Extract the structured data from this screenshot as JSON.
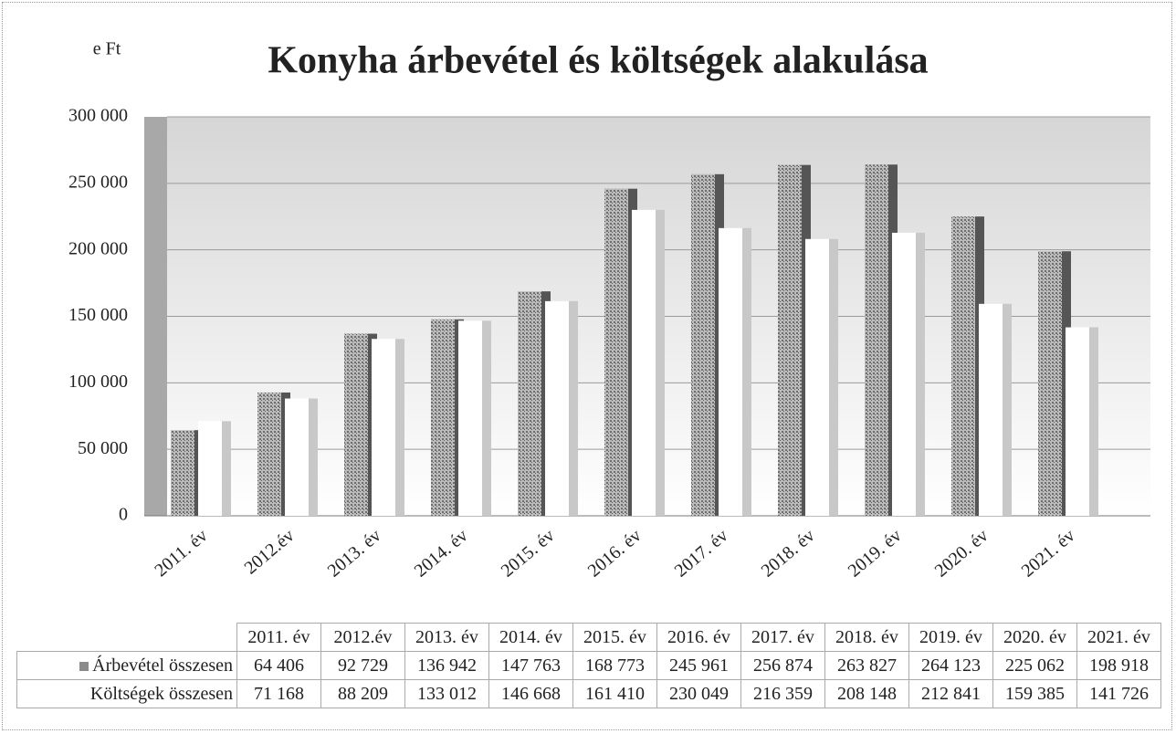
{
  "chart_data": {
    "type": "bar",
    "title": "Konyha árbevétel és költségek alakulása",
    "y_label": "e Ft",
    "categories": [
      "2011. év",
      "2012.év",
      "2013. év",
      "2014. év",
      "2015. év",
      "2016. év",
      "2017. év",
      "2018. év",
      "2019. év",
      "2020. év",
      "2021. év"
    ],
    "series": [
      {
        "name": "Árbevétel összesen",
        "color": "#8a8a8a",
        "values": [
          64406,
          92729,
          136942,
          147763,
          168773,
          245961,
          256874,
          263827,
          264123,
          225062,
          198918
        ],
        "value_labels": [
          "64 406",
          "92 729",
          "136 942",
          "147 763",
          "168 773",
          "245 961",
          "256 874",
          "263 827",
          "264 123",
          "225 062",
          "198 918"
        ]
      },
      {
        "name": "Költségek összesen",
        "color": "#ffffff",
        "values": [
          71168,
          88209,
          133012,
          146668,
          161410,
          230049,
          216359,
          208148,
          212841,
          159385,
          141726
        ],
        "value_labels": [
          "71 168",
          "88 209",
          "133 012",
          "146 668",
          "161 410",
          "230 049",
          "216 359",
          "208 148",
          "212 841",
          "159 385",
          "141 726"
        ]
      }
    ],
    "ylim": [
      0,
      300000
    ],
    "yticks": [
      0,
      {
        "value": 50000,
        "label": "50 000"
      },
      {
        "value": 100000,
        "label": "100 000"
      },
      {
        "value": 150000,
        "label": "150 000"
      },
      {
        "value": 200000,
        "label": "200 000"
      },
      {
        "value": 250000,
        "label": "250 000"
      },
      {
        "value": 300000,
        "label": "300 000"
      }
    ],
    "grid": true
  }
}
